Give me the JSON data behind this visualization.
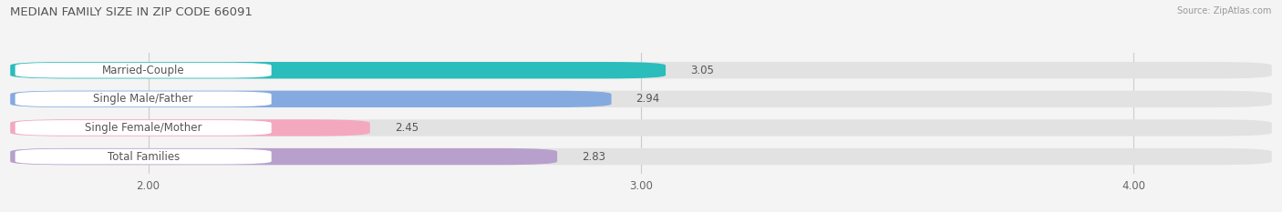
{
  "title": "MEDIAN FAMILY SIZE IN ZIP CODE 66091",
  "source": "Source: ZipAtlas.com",
  "categories": [
    "Married-Couple",
    "Single Male/Father",
    "Single Female/Mother",
    "Total Families"
  ],
  "values": [
    3.05,
    2.94,
    2.45,
    2.83
  ],
  "bar_colors": [
    "#2bbcbc",
    "#85aadf",
    "#f4a8c0",
    "#b8a0cc"
  ],
  "background_color": "#f4f4f4",
  "bar_bg_color": "#e2e2e2",
  "xlim_min": 1.72,
  "xlim_max": 4.28,
  "xticks": [
    2.0,
    3.0,
    4.0
  ],
  "xtick_labels": [
    "2.00",
    "3.00",
    "4.00"
  ],
  "label_fontsize": 8.5,
  "title_fontsize": 9.5,
  "value_fontsize": 8.5,
  "bar_height": 0.58,
  "bar_label_padding": 0.05,
  "label_box_color": "#ffffff",
  "label_text_color": "#555555",
  "value_text_color": "#555555"
}
